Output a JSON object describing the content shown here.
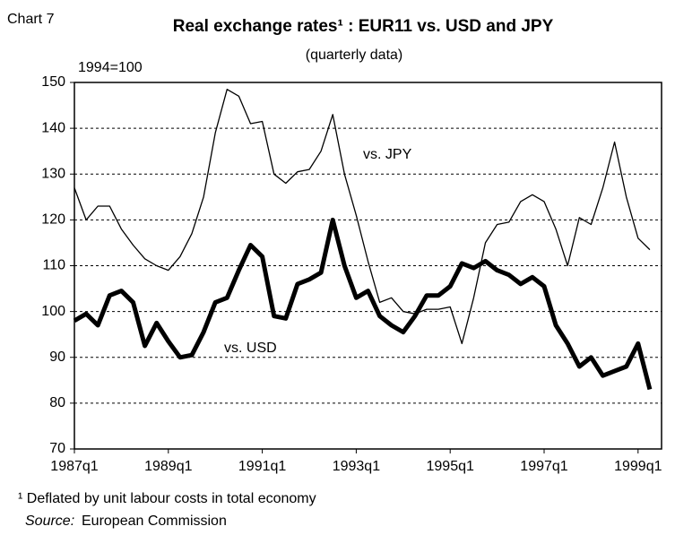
{
  "chart_data": {
    "type": "line",
    "chart_label": "Chart 7",
    "title": "Real exchange rates¹ : EUR11 vs. USD and JPY",
    "subtitle": "(quarterly data)",
    "y_axis_label": "1994=100",
    "categories": [
      "1987q1",
      null,
      null,
      null,
      null,
      null,
      null,
      null,
      "1989q1",
      null,
      null,
      null,
      null,
      null,
      null,
      null,
      "1991q1",
      null,
      null,
      null,
      null,
      null,
      null,
      null,
      "1993q1",
      null,
      null,
      null,
      null,
      null,
      null,
      null,
      "1995q1",
      null,
      null,
      null,
      null,
      null,
      null,
      null,
      "1997q1",
      null,
      null,
      null,
      null,
      null,
      null,
      null,
      "1999q1",
      null
    ],
    "series": [
      {
        "name": "vs. JPY",
        "color": "#000000",
        "values": [
          127,
          120,
          123,
          123,
          118,
          114.5,
          111.5,
          110,
          109,
          112,
          117,
          125,
          139,
          148.5,
          147,
          141,
          141.5,
          130,
          128,
          130.5,
          131,
          135,
          143,
          130,
          121,
          111,
          102,
          103,
          100,
          99.5,
          100.5,
          100.5,
          101,
          93,
          103,
          115,
          119,
          119.5,
          124,
          125.5,
          124,
          118,
          110,
          120.5,
          119,
          127,
          137,
          125,
          116,
          113.5
        ]
      },
      {
        "name": "vs. USD",
        "color": "#000000",
        "values": [
          98,
          99.5,
          97,
          103.5,
          104.5,
          102,
          92.5,
          97.5,
          93.5,
          90,
          90.5,
          95.5,
          102,
          103,
          109,
          114.5,
          112,
          99,
          98.5,
          106,
          107,
          108.5,
          120,
          110,
          103,
          104.5,
          99,
          97,
          95.5,
          99,
          103.5,
          103.5,
          105.5,
          110.5,
          109.5,
          111,
          109,
          108,
          106,
          107.5,
          105.5,
          97,
          93,
          88,
          90,
          86,
          87,
          88,
          93,
          83
        ]
      }
    ],
    "ylim": [
      70,
      150
    ],
    "yticks": [
      70,
      80,
      90,
      100,
      110,
      120,
      130,
      140,
      150
    ],
    "grid": true,
    "footnote": "¹ Deflated by unit labour costs in total economy",
    "source_label": "Source:",
    "source": "European Commission"
  }
}
